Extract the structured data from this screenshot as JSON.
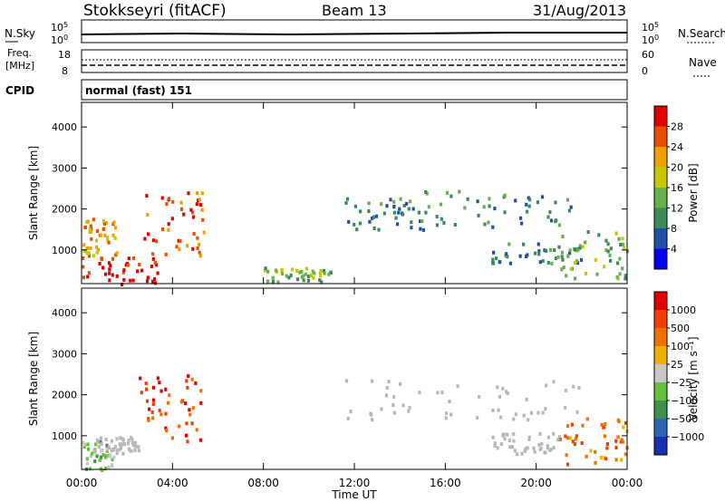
{
  "header": {
    "station": "Stokkseyri (fitACF)",
    "beam": "Beam 13",
    "date": "31/Aug/2013"
  },
  "panels": {
    "nsky": {
      "label": "N.Sky",
      "ticks": [
        "10^5",
        "10^0"
      ],
      "right_ticks": [
        "10^5",
        "10^0"
      ],
      "right_label": "N.Search"
    },
    "freq": {
      "label_line1": "Freq.",
      "label_line2": "[MHz]",
      "ticks": [
        "18",
        "8"
      ],
      "right_ticks": [
        "60",
        "0"
      ],
      "right_label": "Nave"
    },
    "cpid": {
      "label": "CPID",
      "text": "normal (fast) 151"
    }
  },
  "colors": {
    "power_scale": [
      "#0000ee",
      "#1f4fa8",
      "#3c8a5a",
      "#6ab04c",
      "#c8c800",
      "#f0a000",
      "#e85000",
      "#e00000"
    ],
    "velocity_scale": [
      "#1a2fb0",
      "#2a66b8",
      "#3f8f4f",
      "#66c040",
      "#c8c8c8",
      "#f0b000",
      "#f07000",
      "#f04000",
      "#e00000"
    ],
    "ground_scatter": "#b8b8b8"
  },
  "chart_data": [
    {
      "type": "heatmap",
      "title": "",
      "xlabel": "Time UT",
      "ylabel": "Slant Range [km]",
      "x_ticks": [
        "00:00",
        "04:00",
        "08:00",
        "12:00",
        "16:00",
        "20:00",
        "00:00"
      ],
      "y_ticks": [
        1000,
        2000,
        3000,
        4000
      ],
      "xlim_hours": [
        0,
        24
      ],
      "ylim": [
        180,
        4600
      ],
      "colorbar": {
        "label": "Power [dB]",
        "ticks": [
          "4",
          "8",
          "12",
          "16",
          "20",
          "24",
          "28"
        ]
      },
      "regions": [
        {
          "t": [
            0,
            3.5
          ],
          "r": [
            200,
            900
          ],
          "level": 7
        },
        {
          "t": [
            0,
            1.5
          ],
          "r": [
            900,
            1800
          ],
          "level": 5
        },
        {
          "t": [
            2.5,
            5.4
          ],
          "r": [
            900,
            2500
          ],
          "level": 6
        },
        {
          "t": [
            8,
            11
          ],
          "r": [
            250,
            600
          ],
          "level": 3
        },
        {
          "t": [
            11.5,
            15
          ],
          "r": [
            1500,
            2300
          ],
          "level": 2
        },
        {
          "t": [
            15,
            21.5
          ],
          "r": [
            1600,
            2500
          ],
          "level": 2
        },
        {
          "t": [
            18,
            22
          ],
          "r": [
            700,
            1200
          ],
          "level": 2
        },
        {
          "t": [
            21,
            24
          ],
          "r": [
            300,
            1500
          ],
          "level": 3
        }
      ]
    },
    {
      "type": "heatmap",
      "title": "",
      "xlabel": "Time UT",
      "ylabel": "Slant Range [km]",
      "x_ticks": [
        "00:00",
        "04:00",
        "08:00",
        "12:00",
        "16:00",
        "20:00",
        "00:00"
      ],
      "y_ticks": [
        1000,
        2000,
        3000,
        4000
      ],
      "xlim_hours": [
        0,
        24
      ],
      "ylim": [
        180,
        4600
      ],
      "colorbar": {
        "label": "Velocity [m s⁻¹]",
        "ticks": [
          "1000",
          "500",
          "100",
          "25",
          "−25",
          "−100",
          "−500",
          "−1000"
        ]
      },
      "regions": [
        {
          "t": [
            0,
            1.5
          ],
          "r": [
            200,
            900
          ],
          "level": 3
        },
        {
          "t": [
            0.5,
            2.5
          ],
          "r": [
            600,
            1000
          ],
          "level": "ground"
        },
        {
          "t": [
            2.5,
            5.4
          ],
          "r": [
            900,
            2500
          ],
          "level": 7
        },
        {
          "t": [
            11.5,
            22
          ],
          "r": [
            1400,
            2400
          ],
          "level": "ground"
        },
        {
          "t": [
            18,
            21
          ],
          "r": [
            600,
            1100
          ],
          "level": "ground"
        },
        {
          "t": [
            21,
            24
          ],
          "r": [
            300,
            1500
          ],
          "level": 6
        }
      ]
    }
  ]
}
